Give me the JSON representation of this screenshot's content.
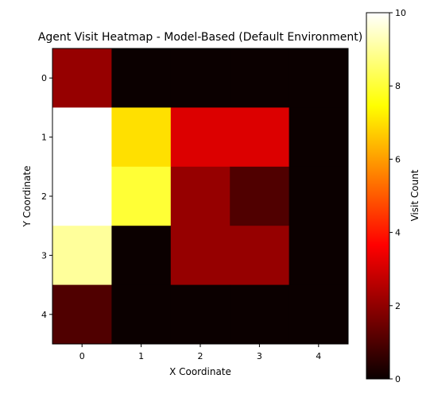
{
  "chart_data": {
    "type": "heatmap",
    "title": "Agent Visit Heatmap - Model-Based (Default Environment)",
    "xlabel": "X Coordinate",
    "ylabel": "Y Coordinate",
    "x_ticks": [
      "0",
      "1",
      "2",
      "3",
      "4"
    ],
    "y_ticks": [
      "0",
      "1",
      "2",
      "3",
      "4"
    ],
    "grid": false,
    "colormap": "hot",
    "values": [
      [
        2,
        0,
        0,
        0,
        0
      ],
      [
        10,
        7,
        3,
        3,
        0
      ],
      [
        10,
        8,
        2,
        1,
        0
      ],
      [
        9,
        0,
        2,
        2,
        0
      ],
      [
        1,
        0,
        0,
        0,
        0
      ]
    ],
    "colorbar": {
      "label": "Visit Count",
      "range": [
        0,
        10
      ],
      "ticks": [
        "0",
        "2",
        "4",
        "6",
        "8",
        "10"
      ]
    }
  }
}
